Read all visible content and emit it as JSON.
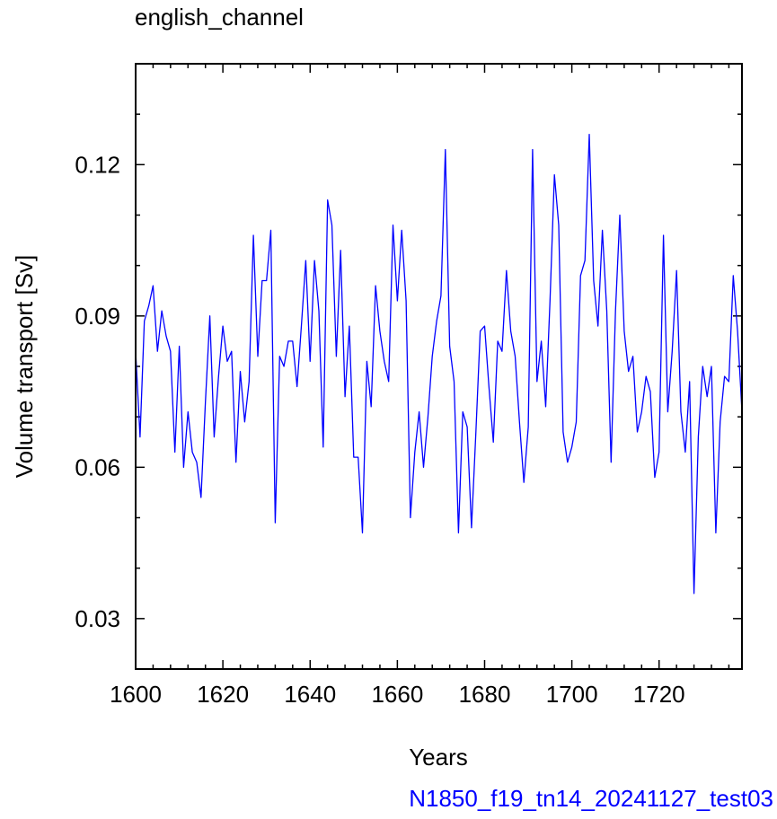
{
  "chart_data": {
    "type": "line",
    "title": "english_channel",
    "xlabel": "Years",
    "ylabel": "Volume transport [Sv]",
    "subtitle_right": "N1850_f19_tn14_20241127_test03",
    "xlim": [
      1600,
      1739
    ],
    "ylim": [
      0.02,
      0.14
    ],
    "x_ticks": [
      "1600",
      "1620",
      "1640",
      "1660",
      "1680",
      "1700",
      "1720"
    ],
    "y_ticks": [
      "0.03",
      "0.06",
      "0.09",
      "0.12"
    ],
    "x_start": 1600,
    "x_step": 1,
    "series": [
      {
        "color": "#0000ff",
        "values": [
          0.083,
          0.066,
          0.089,
          0.092,
          0.096,
          0.083,
          0.091,
          0.086,
          0.083,
          0.063,
          0.084,
          0.06,
          0.071,
          0.063,
          0.061,
          0.054,
          0.073,
          0.09,
          0.066,
          0.078,
          0.088,
          0.081,
          0.083,
          0.061,
          0.079,
          0.069,
          0.077,
          0.106,
          0.082,
          0.097,
          0.097,
          0.107,
          0.049,
          0.082,
          0.08,
          0.085,
          0.085,
          0.076,
          0.088,
          0.101,
          0.081,
          0.101,
          0.091,
          0.064,
          0.113,
          0.108,
          0.082,
          0.103,
          0.074,
          0.088,
          0.062,
          0.062,
          0.047,
          0.081,
          0.072,
          0.096,
          0.087,
          0.081,
          0.077,
          0.108,
          0.093,
          0.107,
          0.093,
          0.05,
          0.063,
          0.071,
          0.06,
          0.07,
          0.082,
          0.089,
          0.094,
          0.123,
          0.084,
          0.077,
          0.047,
          0.071,
          0.068,
          0.048,
          0.067,
          0.087,
          0.088,
          0.076,
          0.065,
          0.085,
          0.083,
          0.099,
          0.087,
          0.082,
          0.069,
          0.057,
          0.068,
          0.123,
          0.077,
          0.085,
          0.072,
          0.093,
          0.118,
          0.108,
          0.067,
          0.061,
          0.064,
          0.069,
          0.098,
          0.101,
          0.126,
          0.097,
          0.088,
          0.107,
          0.091,
          0.061,
          0.091,
          0.11,
          0.087,
          0.079,
          0.082,
          0.067,
          0.071,
          0.078,
          0.075,
          0.058,
          0.063,
          0.106,
          0.071,
          0.083,
          0.099,
          0.071,
          0.063,
          0.077,
          0.035,
          0.066,
          0.08,
          0.074,
          0.08,
          0.047,
          0.069,
          0.078,
          0.077,
          0.098,
          0.087,
          0.071
        ]
      }
    ],
    "grid": false,
    "legend": "none"
  }
}
